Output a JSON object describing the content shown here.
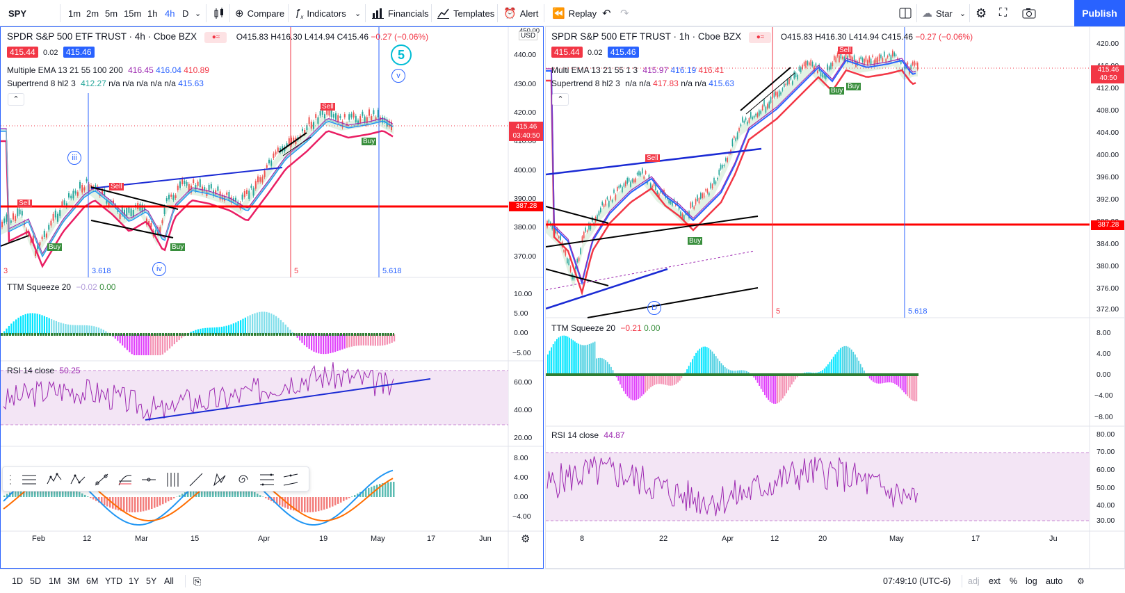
{
  "toolbar": {
    "symbol": "SPY",
    "intervals": [
      "1m",
      "2m",
      "5m",
      "15m",
      "1h",
      "4h",
      "D"
    ],
    "active_interval": "4h",
    "compare": "Compare",
    "indicators": "Indicators",
    "financials": "Financials",
    "templates": "Templates",
    "alert": "Alert",
    "replay": "Replay",
    "star": "Star",
    "publish": "Publish"
  },
  "left_chart": {
    "title": "SPDR S&P 500 ETF TRUST · 4h · Cboe BZX",
    "ohlc": {
      "o": "O415.83",
      "h": "H416.30",
      "l": "L414.94",
      "c": "C415.46",
      "chg": "−0.27 (−0.06%)"
    },
    "bid": "415.44",
    "spread": "0.02",
    "ask": "415.46",
    "ema_label": "Multiple EMA 13 21 55 100 200",
    "ema_values": [
      "416.45",
      "416.04",
      "410.89"
    ],
    "supertrend_label": "Supertrend 8 hl2 3",
    "supertrend_values": [
      "412.27",
      "n/a n/a n/a n/a n/a",
      "415.63"
    ],
    "price_axis": [
      "450.00",
      "440.00",
      "430.00",
      "420.00",
      "410.00",
      "400.00",
      "390.00",
      "380.00",
      "370.00"
    ],
    "currency": "USD",
    "last_price": "415.46",
    "countdown": "03:40:50",
    "level_price": "387.28",
    "wave_labels": {
      "w3": "3",
      "w3618": "3.618",
      "w5": "5",
      "w5618": "5.618",
      "iii": "iii",
      "iv": "iv",
      "v": "v",
      "five": "5"
    },
    "signals": {
      "sell": "Sell",
      "buy": "Buy"
    },
    "time_axis": [
      "Feb",
      "12",
      "Mar",
      "15",
      "Apr",
      "19",
      "May",
      "17",
      "Jun"
    ],
    "ttm_label": "TTM Squeeze 20",
    "ttm_values": [
      "−0.02",
      "0.00"
    ],
    "ttm_axis": [
      "10.00",
      "5.00",
      "0.00",
      "−5.00"
    ],
    "rsi_label": "RSI 14 close",
    "rsi_value": "50.25",
    "rsi_axis": [
      "60.00",
      "40.00",
      "20.00"
    ],
    "macd_axis": [
      "8.00",
      "4.00",
      "0.00",
      "−4.00"
    ]
  },
  "right_chart": {
    "title": "SPDR S&P 500 ETF TRUST · 1h · Cboe BZX",
    "ohlc": {
      "o": "O415.83",
      "h": "H416.30",
      "l": "L414.94",
      "c": "C415.46",
      "chg": "−0.27 (−0.06%)"
    },
    "bid": "415.44",
    "spread": "0.02",
    "ask": "415.46",
    "ema_label": "Multi EMA 13 21 55 1 3",
    "ema_values": [
      "415.97",
      "416.19",
      "416.41"
    ],
    "supertrend_label": "Supertrend 8 hl2 3",
    "supertrend_values": [
      "n/a n/a",
      "417.83",
      "n/a n/a",
      "415.63"
    ],
    "price_axis": [
      "420.00",
      "416.00",
      "412.00",
      "408.00",
      "404.00",
      "400.00",
      "396.00",
      "392.00",
      "388.00",
      "384.00",
      "380.00",
      "376.00",
      "372.00"
    ],
    "last_price": "415.46",
    "countdown": "40:50",
    "level_price": "387.28",
    "wave_labels": {
      "w5": "5",
      "w5618": "5.618",
      "d": "D"
    },
    "signals": {
      "sell": "Sell",
      "buy": "Buy"
    },
    "time_axis": [
      "8",
      "22",
      "Apr",
      "12",
      "20",
      "May",
      "17",
      "Ju"
    ],
    "ttm_label": "TTM Squeeze 20",
    "ttm_values": [
      "−0.21",
      "0.00"
    ],
    "ttm_axis": [
      "8.00",
      "4.00",
      "0.00",
      "−4.00",
      "−8.00"
    ],
    "rsi_label": "RSI 14 close",
    "rsi_value": "44.87",
    "rsi_axis": [
      "80.00",
      "70.00",
      "60.00",
      "50.00",
      "40.00",
      "30.00"
    ]
  },
  "bottombar": {
    "ranges": [
      "1D",
      "5D",
      "1M",
      "3M",
      "6M",
      "YTD",
      "1Y",
      "5Y",
      "All"
    ],
    "time": "07:49:10 (UTC-6)",
    "percent": "%",
    "adj": "adj",
    "ext": "ext",
    "log": "log",
    "auto": "auto"
  },
  "colors": {
    "accent": "#2962ff",
    "red": "#f23645",
    "green": "#26a69a",
    "pink_ema": "#e91e63",
    "ema_blue": "#2196f3",
    "ttm_cyan": "#40e0d0",
    "ttm_magenta": "#e040fb",
    "rsi_purple": "#9c27b0"
  }
}
